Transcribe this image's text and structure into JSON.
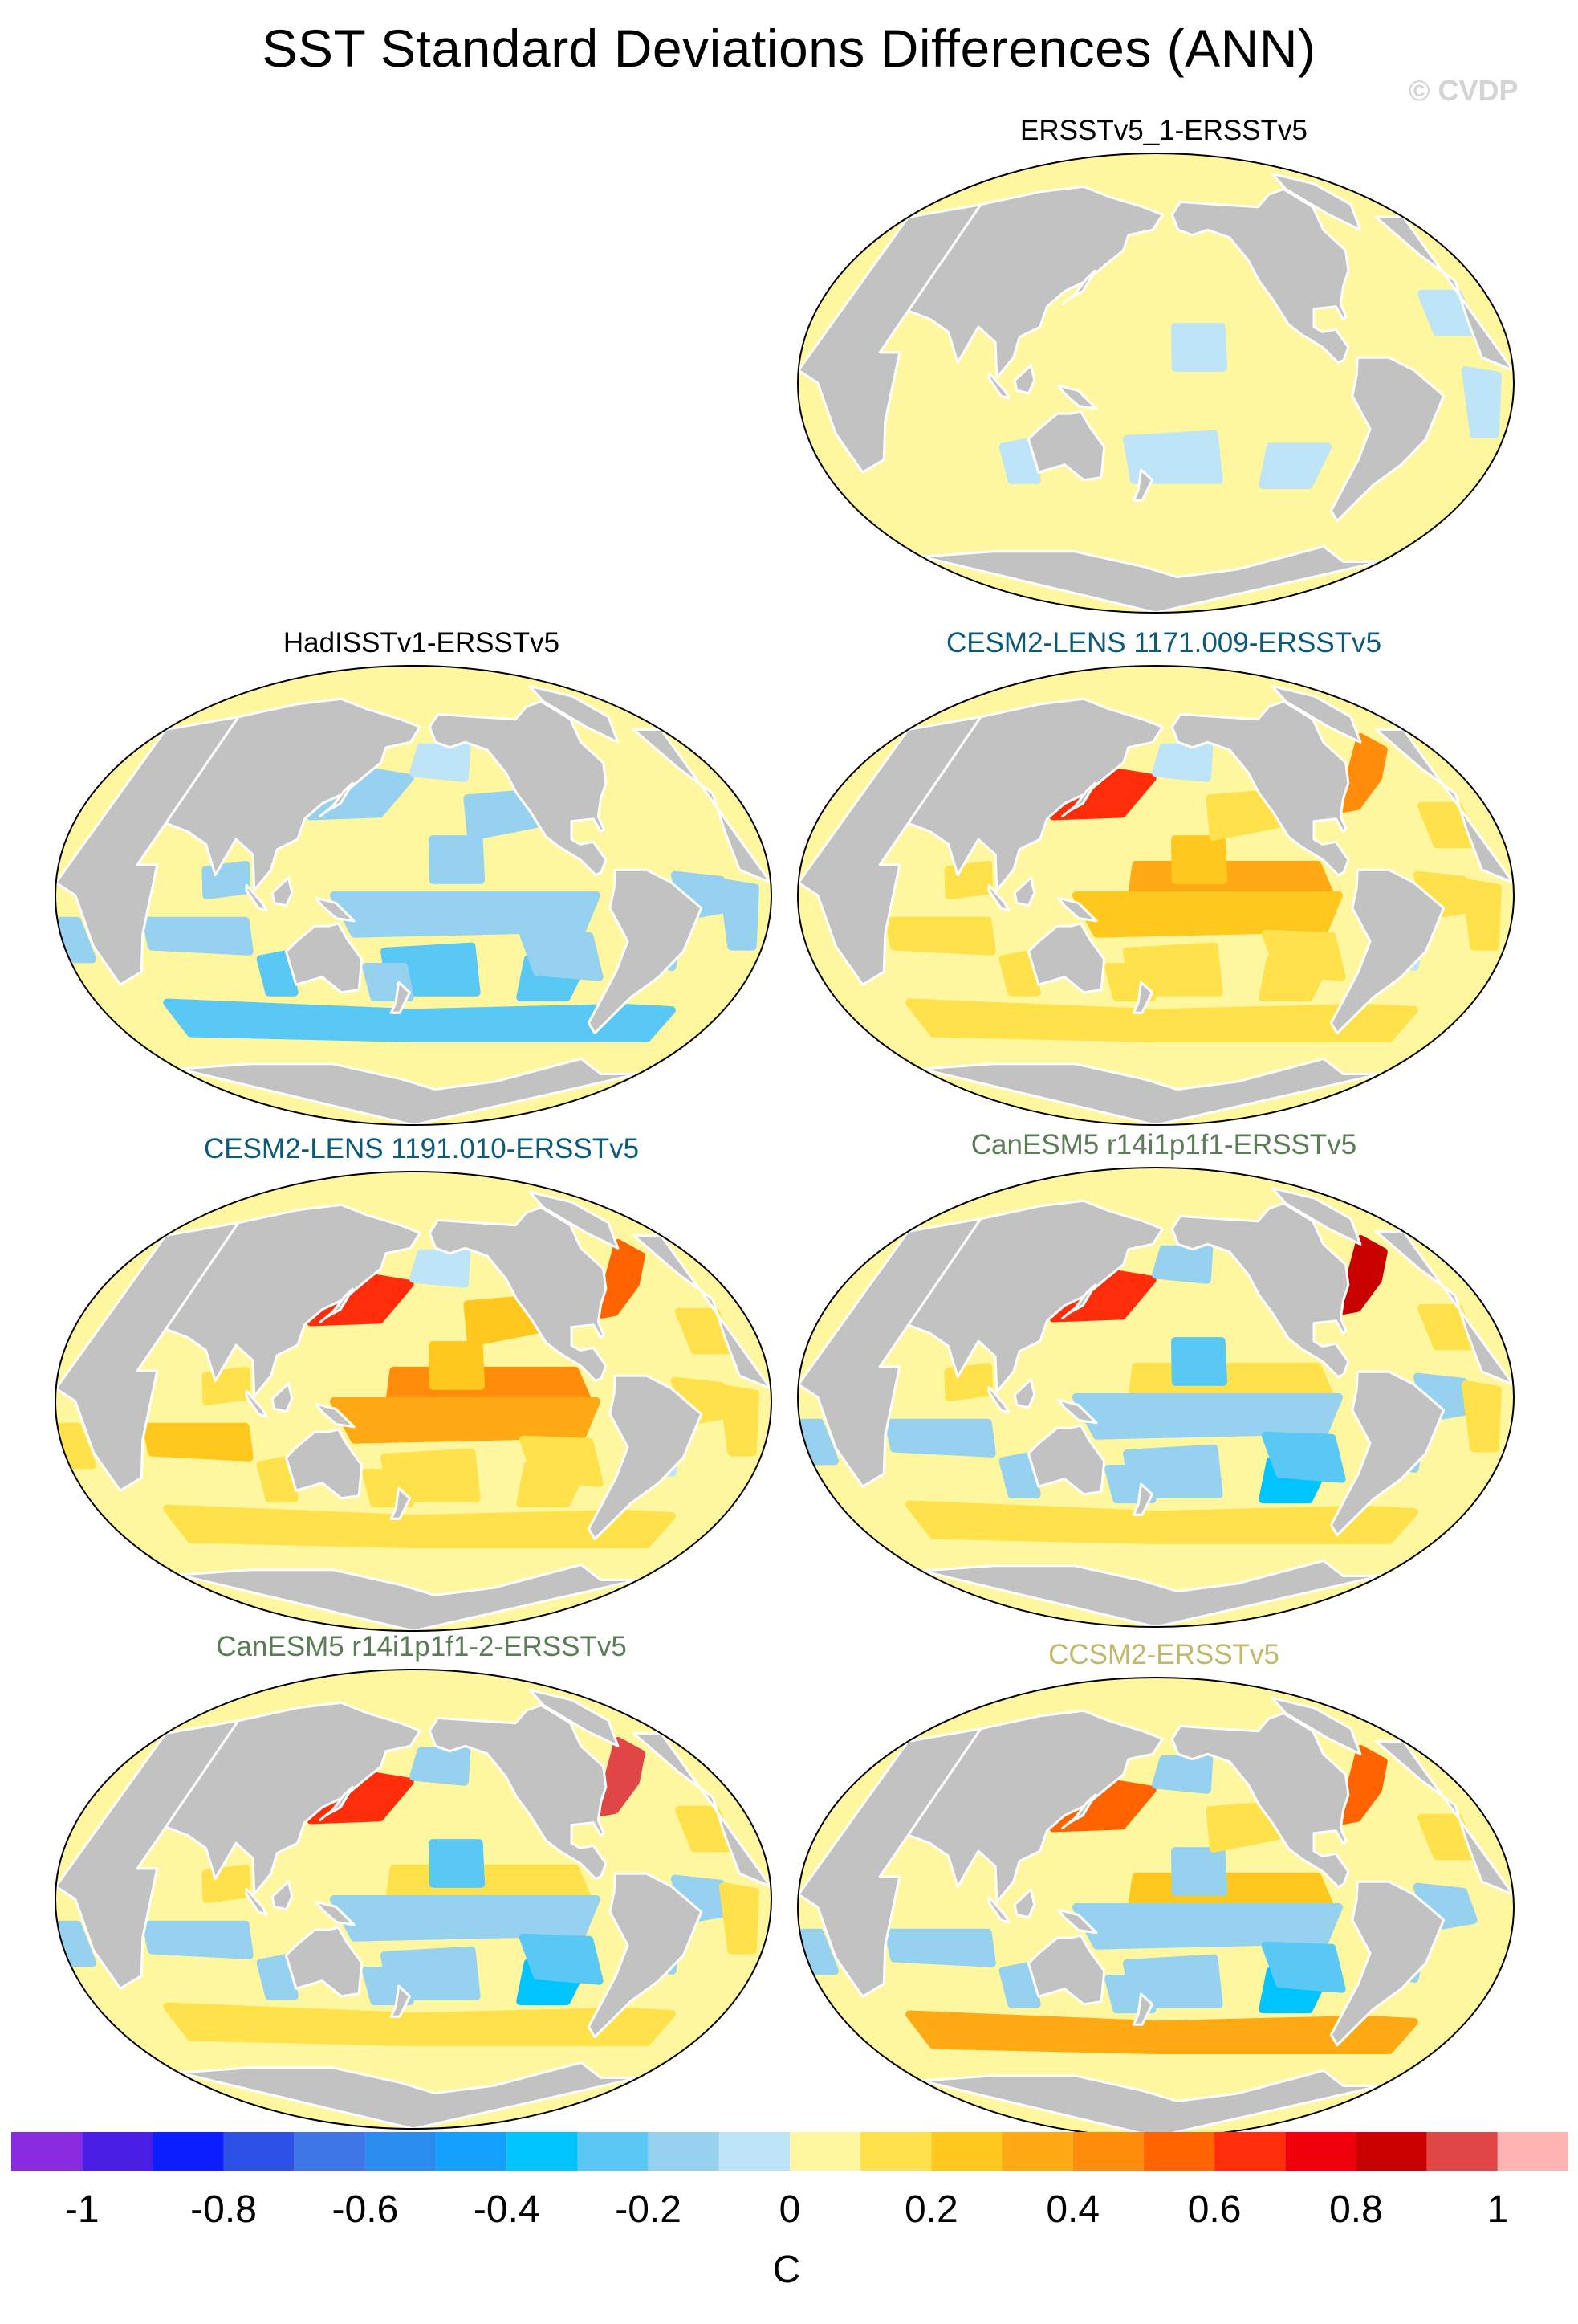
{
  "figure": {
    "title": "SST Standard Deviations Differences (ANN)",
    "copyright": "© CVDP",
    "land_color": "#c2c2c2",
    "ocean_base_color": "#fff7a0"
  },
  "chart_data": [
    {
      "type": "heatmap",
      "panel": "ERSSTv5_1-ERSSTv5",
      "title_color": "#000000",
      "projection": "Robinson, Pacific-centered",
      "pattern": "mostly near zero (0 to 0.1) with patches of -0.1 to 0",
      "features": []
    },
    {
      "type": "heatmap",
      "panel": "HadISSTv1-ERSSTv5",
      "title_color": "#000000",
      "projection": "Robinson, Pacific-centered",
      "pattern": "widespread negative differences (-0.1 to -0.3), small positive patches",
      "features": []
    },
    {
      "type": "heatmap",
      "panel": "CESM2-LENS 1171.009-ERSSTv5",
      "title_color": "#0a5a78",
      "projection": "Robinson, Pacific-centered",
      "pattern": "positive tropical Pacific band (0.2 to 0.4), strong Kuroshio extension",
      "features": [
        "Kuroshio: 0.8",
        "Gulf Stream: 0.5"
      ]
    },
    {
      "type": "heatmap",
      "panel": "CESM2-LENS 1191.010-ERSSTv5",
      "title_color": "#0a5a78",
      "projection": "Robinson, Pacific-centered",
      "pattern": "strong positive equatorial Pacific band (0.3 to 0.5)",
      "features": [
        "Kuroshio: 0.7",
        "Gulf Stream: 0.6"
      ]
    },
    {
      "type": "heatmap",
      "panel": "CanESM5 r14i1p1f1-ERSSTv5",
      "title_color": "#5a7d55",
      "projection": "Robinson, Pacific-centered",
      "pattern": "negative eastern Pacific (-0.2 to -0.4), positive western boundary currents",
      "features": [
        "Gulf Stream: 0.9",
        "Kuroshio: 0.7"
      ]
    },
    {
      "type": "heatmap",
      "panel": "CanESM5 r14i1p1f1-2-ERSSTv5",
      "title_color": "#5a7d55",
      "projection": "Robinson, Pacific-centered",
      "pattern": "negative eastern Pacific (-0.2 to -0.4), positive western boundary currents",
      "features": [
        "Gulf Stream: 0.9",
        "Kuroshio: 0.7"
      ]
    },
    {
      "type": "heatmap",
      "panel": "CCSM2-ERSSTv5",
      "title_color": "#c2b86a",
      "projection": "Robinson, Pacific-centered",
      "pattern": "negative central/eastern Pacific (-0.2 to -0.3), positive Southern Ocean band (0.3 to 0.4)",
      "features": [
        "Kuroshio: 0.6",
        "Gulf Stream: 0.5"
      ]
    }
  ],
  "colorbar": {
    "label": "C",
    "tick_labels": [
      "-1",
      "-0.8",
      "-0.6",
      "-0.4",
      "-0.2",
      "0",
      "0.2",
      "0.4",
      "0.6",
      "0.8",
      "1"
    ],
    "colors": [
      "#8a2be2",
      "#4b1ee6",
      "#0a1eff",
      "#2d50e6",
      "#3d76e6",
      "#2b8cf0",
      "#14a0ff",
      "#00c4ff",
      "#5ac8f5",
      "#96d2f0",
      "#bee4f8",
      "#fff7a0",
      "#ffe14b",
      "#ffc81e",
      "#ffaa14",
      "#ff8c0a",
      "#ff6400",
      "#ff2d0a",
      "#f0000a",
      "#c80000",
      "#e04646",
      "#ffb4b4"
    ]
  }
}
